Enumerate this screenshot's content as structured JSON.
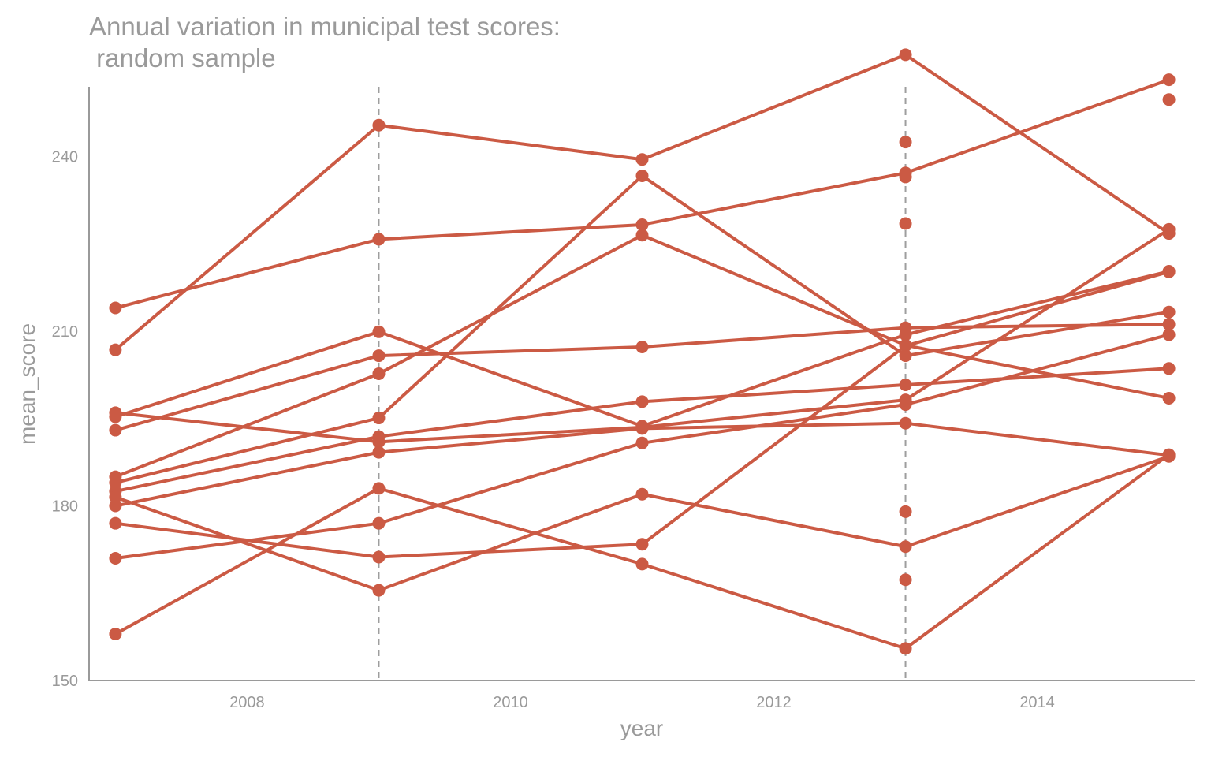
{
  "chart_data": {
    "type": "line",
    "title": "Annual variation in municipal test scores:\n random sample",
    "xlabel": "year",
    "ylabel": "mean_score",
    "xlim": [
      2006.8,
      2015.2
    ],
    "ylim": [
      150,
      252
    ],
    "x_ticks": [
      2008,
      2010,
      2012,
      2014
    ],
    "y_ticks": [
      150,
      180,
      210,
      240
    ],
    "reference_lines_x": [
      2009,
      2013
    ],
    "color": "#cb5a44",
    "grid": false,
    "series": [
      {
        "x": [
          2007,
          2009,
          2011,
          2013,
          2015
        ],
        "y": [
          206.8,
          245.4,
          239.5,
          257.5,
          226.8
        ]
      },
      {
        "x": [
          2007,
          2009,
          2011,
          2013,
          2015
        ],
        "y": [
          214.0,
          225.8,
          228.3,
          237.2,
          253.2
        ]
      },
      {
        "x": [
          2007,
          2009,
          2011,
          2013,
          2015
        ],
        "y": [
          195.3,
          209.9,
          193.7,
          209.4,
          220.3
        ]
      },
      {
        "x": [
          2007,
          2009,
          2011,
          2013,
          2015
        ],
        "y": [
          193.0,
          205.8,
          207.3,
          210.6,
          211.2
        ]
      },
      {
        "x": [
          2007,
          2009,
          2011,
          2013,
          2015
        ],
        "y": [
          185.0,
          202.7,
          226.5,
          207.6,
          198.5
        ]
      },
      {
        "x": [
          2007,
          2009,
          2011,
          2013,
          2015
        ],
        "y": [
          184.0,
          195.1,
          236.7,
          205.8,
          213.3
        ]
      },
      {
        "x": [
          2007,
          2009,
          2011,
          2013,
          2015
        ],
        "y": [
          182.5,
          191.9,
          197.9,
          200.8,
          203.6
        ]
      },
      {
        "x": [
          2007,
          2009,
          2011,
          2013,
          2015
        ],
        "y": [
          180.0,
          189.2,
          193.3,
          194.2,
          188.7
        ]
      },
      {
        "x": [
          2007,
          2009,
          2011,
          2013,
          2015
        ],
        "y": [
          196.0,
          191.0,
          193.5,
          198.2,
          227.5
        ]
      },
      {
        "x": [
          2007,
          2009,
          2011,
          2013,
          2015
        ],
        "y": [
          177.0,
          171.2,
          173.4,
          207.5,
          220.2
        ]
      },
      {
        "x": [
          2007,
          2009,
          2011,
          2013,
          2015
        ],
        "y": [
          171.0,
          177.0,
          190.8,
          197.4,
          209.4
        ]
      },
      {
        "x": [
          2007,
          2009,
          2011,
          2013,
          2015
        ],
        "y": [
          158.0,
          183.0,
          170.0,
          155.5,
          188.8
        ]
      },
      {
        "x": [
          2007,
          2009,
          2011,
          2013,
          2015
        ],
        "y": [
          181.5,
          165.5,
          182.0,
          173.0,
          188.5
        ]
      }
    ],
    "extra_points": [
      {
        "x": 2013,
        "y": 242.5
      },
      {
        "x": 2013,
        "y": 236.5
      },
      {
        "x": 2013,
        "y": 228.5
      },
      {
        "x": 2013,
        "y": 179.0
      },
      {
        "x": 2013,
        "y": 167.3
      },
      {
        "x": 2015,
        "y": 249.8
      }
    ]
  }
}
